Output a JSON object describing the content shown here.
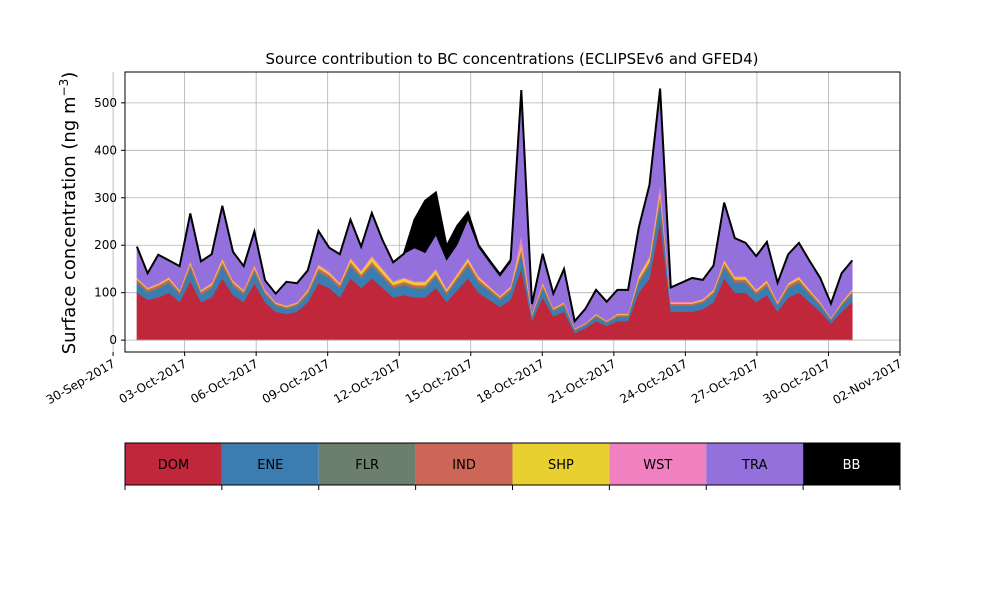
{
  "chart_data": {
    "type": "area",
    "stacked": true,
    "title": "Source contribution to BC concentrations (ECLIPSEv6 and GFED4)",
    "ylabel_main": "Surface concentration (ng m",
    "ylabel_sup": "−3",
    "ylabel_close": ")",
    "xlabel": "",
    "x_start": "2017-10-01",
    "x_end": "2017-10-31",
    "xlim": [
      "2017-09-30T12:00",
      "2017-11-02T00:00"
    ],
    "ylim": [
      -25,
      565
    ],
    "grid": true,
    "yticks": [
      0,
      100,
      200,
      300,
      400,
      500
    ],
    "xticks": [
      "30-Sep-2017",
      "03-Oct-2017",
      "06-Oct-2017",
      "09-Oct-2017",
      "12-Oct-2017",
      "15-Oct-2017",
      "18-Oct-2017",
      "21-Oct-2017",
      "24-Oct-2017",
      "27-Oct-2017",
      "30-Oct-2017",
      "02-Nov-2017"
    ],
    "total_series": "BB",
    "series": [
      {
        "name": "DOM",
        "color": "#c0273a",
        "values": [
          100,
          85,
          90,
          100,
          80,
          125,
          80,
          90,
          130,
          95,
          80,
          120,
          80,
          60,
          55,
          60,
          80,
          120,
          110,
          90,
          130,
          110,
          130,
          110,
          90,
          95,
          90,
          90,
          110,
          80,
          105,
          130,
          100,
          85,
          70,
          85,
          150,
          40,
          90,
          50,
          60,
          15,
          25,
          40,
          30,
          40,
          40,
          100,
          130,
          250,
          60,
          60,
          60,
          65,
          80,
          130,
          100,
          100,
          80,
          95,
          60,
          90,
          100,
          80,
          60,
          35,
          60,
          80
        ]
      },
      {
        "name": "ENE",
        "color": "#3b7cb1",
        "values": [
          20,
          15,
          18,
          20,
          15,
          25,
          15,
          18,
          25,
          18,
          15,
          22,
          15,
          12,
          10,
          12,
          15,
          22,
          20,
          18,
          25,
          20,
          25,
          22,
          18,
          20,
          18,
          18,
          22,
          15,
          20,
          25,
          20,
          17,
          14,
          17,
          30,
          8,
          18,
          10,
          12,
          5,
          6,
          8,
          6,
          8,
          8,
          20,
          25,
          40,
          12,
          12,
          12,
          13,
          15,
          22,
          20,
          20,
          15,
          18,
          12,
          18,
          20,
          15,
          12,
          7,
          12,
          16
        ]
      },
      {
        "name": "FLR",
        "color": "#6c7e6c",
        "values": [
          3,
          3,
          3,
          3,
          3,
          4,
          3,
          3,
          4,
          3,
          3,
          4,
          3,
          2,
          2,
          2,
          3,
          4,
          3,
          3,
          4,
          3,
          4,
          3,
          3,
          3,
          3,
          3,
          3,
          3,
          3,
          4,
          3,
          3,
          2,
          3,
          4,
          2,
          3,
          2,
          2,
          1,
          1,
          2,
          1,
          2,
          2,
          3,
          4,
          5,
          2,
          2,
          2,
          2,
          3,
          4,
          3,
          3,
          3,
          3,
          2,
          3,
          3,
          3,
          2,
          1,
          2,
          3
        ]
      },
      {
        "name": "IND",
        "color": "#cc6656",
        "values": [
          5,
          4,
          5,
          5,
          4,
          6,
          4,
          5,
          6,
          5,
          4,
          6,
          4,
          3,
          3,
          3,
          4,
          6,
          5,
          5,
          6,
          5,
          6,
          5,
          5,
          5,
          5,
          5,
          5,
          4,
          5,
          6,
          5,
          4,
          4,
          4,
          8,
          3,
          5,
          3,
          3,
          2,
          2,
          3,
          2,
          3,
          3,
          5,
          6,
          10,
          3,
          3,
          3,
          3,
          4,
          6,
          5,
          5,
          4,
          5,
          3,
          5,
          5,
          4,
          3,
          2,
          3,
          4
        ]
      },
      {
        "name": "SHP",
        "color": "#e8d030",
        "values": [
          2,
          2,
          2,
          3,
          2,
          4,
          2,
          3,
          5,
          3,
          2,
          4,
          2,
          2,
          2,
          2,
          3,
          5,
          4,
          3,
          6,
          6,
          10,
          8,
          6,
          7,
          6,
          6,
          8,
          4,
          5,
          6,
          4,
          3,
          2,
          3,
          10,
          2,
          4,
          2,
          2,
          1,
          1,
          2,
          1,
          2,
          2,
          6,
          8,
          10,
          2,
          2,
          2,
          2,
          3,
          5,
          4,
          4,
          3,
          4,
          2,
          3,
          4,
          3,
          2,
          1,
          2,
          3
        ]
      },
      {
        "name": "WST",
        "color": "#f080c0",
        "values": [
          2,
          2,
          2,
          2,
          2,
          3,
          2,
          2,
          3,
          2,
          2,
          3,
          2,
          1,
          1,
          1,
          2,
          3,
          3,
          2,
          3,
          3,
          3,
          3,
          2,
          2,
          2,
          2,
          3,
          2,
          3,
          3,
          3,
          2,
          2,
          2,
          20,
          1,
          2,
          1,
          1,
          1,
          1,
          1,
          1,
          1,
          1,
          3,
          4,
          15,
          2,
          2,
          2,
          2,
          2,
          3,
          3,
          3,
          2,
          2,
          2,
          2,
          3,
          2,
          2,
          1,
          2,
          2
        ]
      },
      {
        "name": "TRA",
        "color": "#9370db",
        "values": [
          65,
          30,
          60,
          35,
          50,
          100,
          60,
          60,
          110,
          60,
          50,
          70,
          20,
          18,
          50,
          40,
          40,
          70,
          50,
          60,
          80,
          50,
          90,
          60,
          40,
          50,
          70,
          60,
          70,
          60,
          60,
          80,
          60,
          50,
          40,
          50,
          300,
          20,
          60,
          30,
          70,
          15,
          30,
          50,
          40,
          50,
          50,
          100,
          150,
          200,
          30,
          40,
          50,
          40,
          50,
          120,
          80,
          70,
          70,
          80,
          40,
          60,
          70,
          60,
          50,
          30,
          60,
          60
        ]
      },
      {
        "name": "BB",
        "color": "#000000",
        "values": [
          0,
          0,
          0,
          0,
          0,
          0,
          0,
          0,
          0,
          0,
          0,
          0,
          0,
          0,
          0,
          0,
          0,
          0,
          0,
          0,
          0,
          0,
          0,
          0,
          0,
          0,
          60,
          110,
          90,
          30,
          40,
          15,
          5,
          5,
          5,
          5,
          5,
          0,
          0,
          0,
          0,
          0,
          0,
          0,
          0,
          0,
          0,
          0,
          0,
          0,
          0,
          0,
          0,
          0,
          0,
          0,
          0,
          0,
          0,
          0,
          0,
          0,
          0,
          0,
          0,
          0,
          0,
          0
        ]
      }
    ]
  }
}
